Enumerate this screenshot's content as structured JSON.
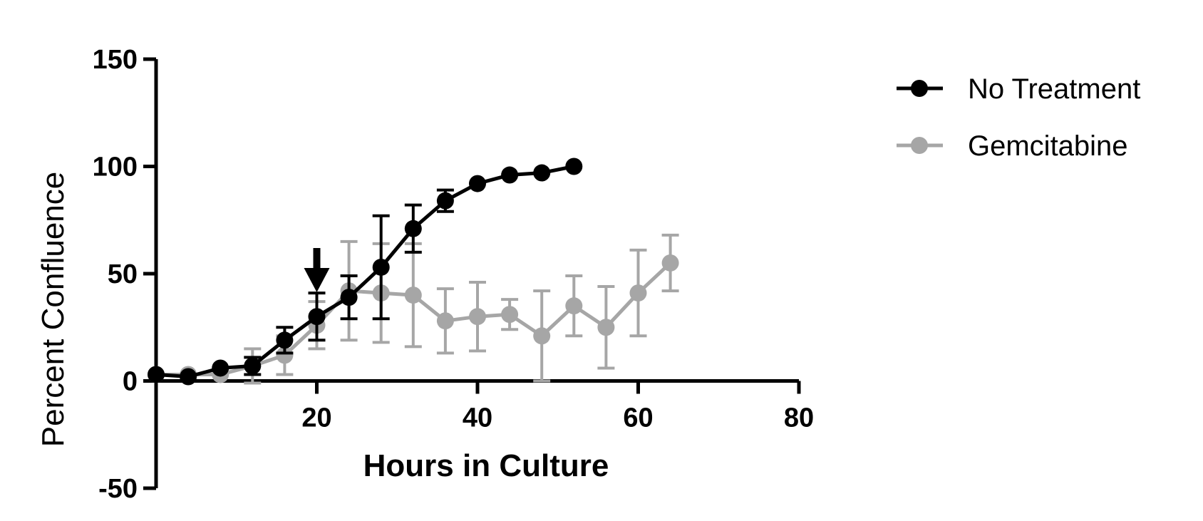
{
  "chart_data": {
    "type": "line",
    "title": "",
    "xlabel": "Hours in Culture",
    "ylabel": "Percent Confluence",
    "xlim": [
      0,
      80
    ],
    "ylim": [
      -50,
      150
    ],
    "xticks": [
      20,
      40,
      60,
      80
    ],
    "yticks": [
      -50,
      0,
      50,
      100,
      150
    ],
    "legend_position": "top-right",
    "grid": false,
    "series": [
      {
        "name": "No Treatment",
        "color": "#000000",
        "x": [
          0,
          4,
          8,
          12,
          16,
          20,
          24,
          28,
          32,
          36,
          40,
          44,
          48,
          52
        ],
        "y": [
          3,
          2,
          6,
          7,
          19,
          30,
          39,
          53,
          71,
          84,
          92,
          96,
          97,
          100
        ],
        "error": [
          0,
          0,
          0,
          4,
          6,
          11,
          10,
          24,
          11,
          5,
          0,
          0,
          0,
          0
        ]
      },
      {
        "name": "Gemcitabine",
        "color": "#a6a6a6",
        "x": [
          0,
          4,
          8,
          12,
          16,
          20,
          24,
          28,
          32,
          36,
          40,
          44,
          48,
          52,
          56,
          60,
          64
        ],
        "y": [
          3,
          3,
          3,
          7,
          12,
          26,
          42,
          41,
          40,
          28,
          30,
          31,
          21,
          35,
          25,
          41,
          55
        ],
        "error": [
          0,
          0,
          0,
          8,
          9,
          11,
          23,
          23,
          24,
          15,
          16,
          7,
          21,
          14,
          19,
          20,
          13
        ]
      }
    ],
    "annotations": [
      {
        "type": "arrow-down",
        "x": 20,
        "y": 50
      }
    ]
  }
}
